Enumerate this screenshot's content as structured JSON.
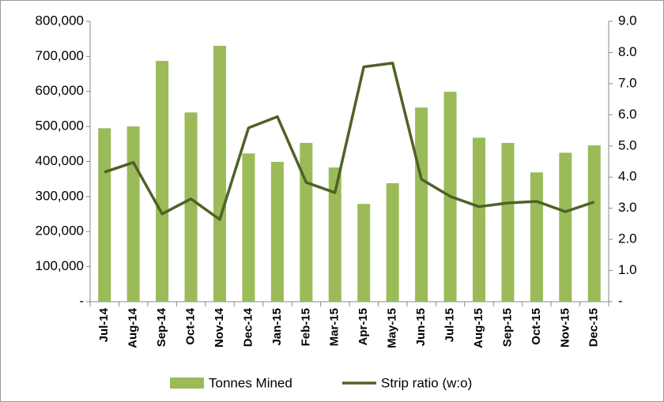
{
  "chart_data": {
    "type": "bar-line",
    "categories": [
      "Jul-14",
      "Aug-14",
      "Sep-14",
      "Oct-14",
      "Nov-14",
      "Dec-14",
      "Jan-15",
      "Feb-15",
      "Mar-15",
      "Apr-15",
      "May-15",
      "Jun-15",
      "Jul-15",
      "Aug-15",
      "Sep-15",
      "Oct-15",
      "Nov-15",
      "Dec-15"
    ],
    "series": [
      {
        "name": "Tonnes Mined",
        "type": "bar",
        "color": "#9bbb59",
        "values": [
          495000,
          500000,
          687000,
          540000,
          730000,
          423000,
          399000,
          453000,
          383000,
          279000,
          338000,
          554000,
          599000,
          468000,
          453000,
          369000,
          425000,
          446000
        ]
      },
      {
        "name": "Strip ratio (w:o)",
        "type": "line",
        "axis": "y2",
        "color": "#4f6228",
        "values": [
          4.16,
          4.47,
          2.82,
          3.3,
          2.64,
          5.58,
          5.94,
          3.83,
          3.5,
          7.54,
          7.66,
          3.93,
          3.38,
          3.05,
          3.17,
          3.22,
          2.89,
          3.2
        ]
      }
    ],
    "ylim": [
      0,
      800000
    ],
    "yticks": [
      {
        "value": 0,
        "label": "-"
      },
      {
        "value": 100000,
        "label": "100,000"
      },
      {
        "value": 200000,
        "label": "200,000"
      },
      {
        "value": 300000,
        "label": "300,000"
      },
      {
        "value": 400000,
        "label": "400,000"
      },
      {
        "value": 500000,
        "label": "500,000"
      },
      {
        "value": 600000,
        "label": "600,000"
      },
      {
        "value": 700000,
        "label": "700,000"
      },
      {
        "value": 800000,
        "label": "800,000"
      }
    ],
    "y2lim": [
      0,
      9
    ],
    "y2ticks": [
      {
        "value": 0,
        "label": "-"
      },
      {
        "value": 1,
        "label": "1.0"
      },
      {
        "value": 2,
        "label": "2.0"
      },
      {
        "value": 3,
        "label": "3.0"
      },
      {
        "value": 4,
        "label": "4.0"
      },
      {
        "value": 5,
        "label": "5.0"
      },
      {
        "value": 6,
        "label": "6.0"
      },
      {
        "value": 7,
        "label": "7.0"
      },
      {
        "value": 8,
        "label": "8.0"
      },
      {
        "value": 9,
        "label": "9.0"
      }
    ],
    "grid": false,
    "legend": "bottom"
  }
}
